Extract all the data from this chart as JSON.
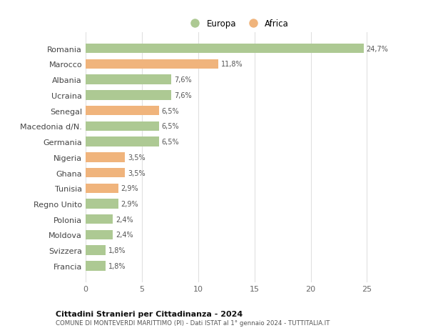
{
  "countries": [
    "Romania",
    "Marocco",
    "Albania",
    "Ucraina",
    "Senegal",
    "Macedonia d/N.",
    "Germania",
    "Nigeria",
    "Ghana",
    "Tunisia",
    "Regno Unito",
    "Polonia",
    "Moldova",
    "Svizzera",
    "Francia"
  ],
  "values": [
    24.7,
    11.8,
    7.6,
    7.6,
    6.5,
    6.5,
    6.5,
    3.5,
    3.5,
    2.9,
    2.9,
    2.4,
    2.4,
    1.8,
    1.8
  ],
  "labels": [
    "24,7%",
    "11,8%",
    "7,6%",
    "7,6%",
    "6,5%",
    "6,5%",
    "6,5%",
    "3,5%",
    "3,5%",
    "2,9%",
    "2,9%",
    "2,4%",
    "2,4%",
    "1,8%",
    "1,8%"
  ],
  "continents": [
    "Europa",
    "Africa",
    "Europa",
    "Europa",
    "Africa",
    "Europa",
    "Europa",
    "Africa",
    "Africa",
    "Africa",
    "Europa",
    "Europa",
    "Europa",
    "Europa",
    "Europa"
  ],
  "color_europa": "#adc993",
  "color_africa": "#f0b47c",
  "title_bold": "Cittadini Stranieri per Cittadinanza - 2024",
  "subtitle": "COMUNE DI MONTEVERDI MARITTIMO (PI) - Dati ISTAT al 1° gennaio 2024 - TUTTITALIA.IT",
  "xlim": [
    0,
    27
  ],
  "xticks": [
    0,
    5,
    10,
    15,
    20,
    25
  ],
  "bg_color": "#ffffff",
  "grid_color": "#e0e0e0",
  "legend_europa": "Europa",
  "legend_africa": "Africa"
}
